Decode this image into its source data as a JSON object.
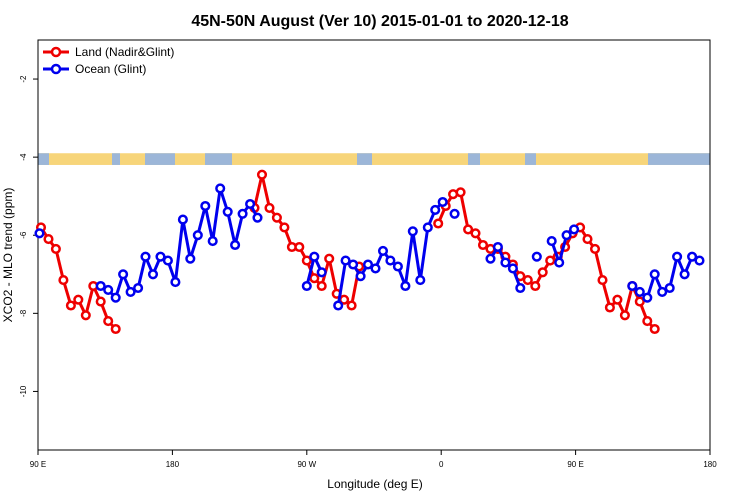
{
  "chart_data": {
    "type": "line",
    "title": "45N-50N August (Ver 10)   2015-01-01 to 2020-12-18",
    "xlabel": "Longitude (deg E)",
    "ylabel": "XCO2 - MLO trend (ppm)",
    "xlim": [
      90,
      540
    ],
    "ylim": [
      -11.5,
      -1
    ],
    "x_ticks": [
      {
        "value": 90,
        "label": "90 E"
      },
      {
        "value": 180,
        "label": "180"
      },
      {
        "value": 270,
        "label": "90 W"
      },
      {
        "value": 360,
        "label": "0"
      },
      {
        "value": 450,
        "label": "90 E"
      },
      {
        "value": 540,
        "label": "180"
      }
    ],
    "y_ticks": [
      {
        "value": -2,
        "label": "-2"
      },
      {
        "value": -4,
        "label": "-4"
      },
      {
        "value": -6,
        "label": "-6"
      },
      {
        "value": -8,
        "label": "-8"
      },
      {
        "value": -10,
        "label": "-10"
      }
    ],
    "legend_position": "top-left",
    "land_band": {
      "y_from": -4.2,
      "y_to": -3.9
    },
    "colors": {
      "land_band": "#f7d57a",
      "ocean_band": "#9cb6d8"
    },
    "series": [
      {
        "name": "Land (Nadir&Glint)",
        "color": "#ee0000",
        "segments": [
          [
            [
              92,
              -5.8
            ],
            [
              97,
              -6.1
            ],
            [
              102,
              -6.35
            ],
            [
              107,
              -7.15
            ],
            [
              112,
              -7.8
            ],
            [
              117,
              -7.65
            ],
            [
              122,
              -8.05
            ],
            [
              127,
              -7.3
            ],
            [
              132,
              -7.7
            ],
            [
              137,
              -8.2
            ],
            [
              142,
              -8.4
            ]
          ],
          [
            [
              235,
              -5.3
            ],
            [
              240,
              -4.45
            ],
            [
              245,
              -5.3
            ],
            [
              250,
              -5.55
            ],
            [
              255,
              -5.8
            ],
            [
              260,
              -6.3
            ],
            [
              265,
              -6.3
            ],
            [
              270,
              -6.65
            ],
            [
              275,
              -7.1
            ],
            [
              280,
              -7.3
            ],
            [
              285,
              -6.6
            ],
            [
              290,
              -7.5
            ],
            [
              295,
              -7.65
            ],
            [
              300,
              -7.8
            ],
            [
              305,
              -6.8
            ]
          ],
          [
            [
              358,
              -5.7
            ],
            [
              363,
              -5.25
            ],
            [
              368,
              -4.95
            ],
            [
              373,
              -4.9
            ],
            [
              378,
              -5.85
            ],
            [
              383,
              -5.95
            ],
            [
              388,
              -6.25
            ],
            [
              393,
              -6.35
            ],
            [
              398,
              -6.35
            ],
            [
              403,
              -6.55
            ],
            [
              408,
              -6.75
            ],
            [
              413,
              -7.05
            ],
            [
              418,
              -7.15
            ],
            [
              423,
              -7.3
            ],
            [
              428,
              -6.95
            ],
            [
              433,
              -6.65
            ],
            [
              438,
              -6.55
            ],
            [
              443,
              -6.3
            ],
            [
              448,
              -5.95
            ],
            [
              453,
              -5.8
            ],
            [
              458,
              -6.1
            ],
            [
              463,
              -6.35
            ],
            [
              468,
              -7.15
            ],
            [
              473,
              -7.85
            ],
            [
              478,
              -7.65
            ],
            [
              483,
              -8.05
            ],
            [
              488,
              -7.3
            ],
            [
              493,
              -7.7
            ],
            [
              498,
              -8.2
            ],
            [
              503,
              -8.4
            ]
          ]
        ]
      },
      {
        "name": "Ocean (Glint)",
        "color": "#0000ee",
        "segments": [
          [
            [
              91,
              -5.95
            ]
          ],
          [
            [
              132,
              -7.3
            ],
            [
              137,
              -7.4
            ],
            [
              142,
              -7.6
            ],
            [
              147,
              -7.0
            ],
            [
              152,
              -7.45
            ],
            [
              157,
              -7.35
            ],
            [
              162,
              -6.55
            ],
            [
              167,
              -7.0
            ],
            [
              172,
              -6.55
            ],
            [
              177,
              -6.65
            ],
            [
              182,
              -7.2
            ],
            [
              187,
              -5.6
            ],
            [
              192,
              -6.6
            ],
            [
              197,
              -6.0
            ],
            [
              202,
              -5.25
            ],
            [
              207,
              -6.15
            ],
            [
              212,
              -4.8
            ],
            [
              217,
              -5.4
            ],
            [
              222,
              -6.25
            ],
            [
              227,
              -5.45
            ],
            [
              232,
              -5.2
            ],
            [
              237,
              -5.55
            ]
          ],
          [
            [
              270,
              -7.3
            ],
            [
              275,
              -6.55
            ],
            [
              280,
              -6.95
            ]
          ],
          [
            [
              291,
              -7.8
            ],
            [
              296,
              -6.65
            ],
            [
              301,
              -6.75
            ],
            [
              306,
              -7.05
            ],
            [
              311,
              -6.75
            ],
            [
              316,
              -6.85
            ],
            [
              321,
              -6.4
            ],
            [
              326,
              -6.65
            ],
            [
              331,
              -6.8
            ],
            [
              336,
              -7.3
            ],
            [
              341,
              -5.9
            ],
            [
              346,
              -7.15
            ],
            [
              351,
              -5.8
            ],
            [
              356,
              -5.35
            ],
            [
              361,
              -5.15
            ]
          ],
          [
            [
              369,
              -5.45
            ]
          ],
          [
            [
              393,
              -6.6
            ],
            [
              398,
              -6.3
            ],
            [
              403,
              -6.7
            ],
            [
              408,
              -6.85
            ],
            [
              413,
              -7.35
            ]
          ],
          [
            [
              424,
              -6.55
            ]
          ],
          [
            [
              434,
              -6.15
            ],
            [
              439,
              -6.7
            ],
            [
              444,
              -6.0
            ],
            [
              449,
              -5.85
            ]
          ],
          [
            [
              488,
              -7.3
            ],
            [
              493,
              -7.45
            ],
            [
              498,
              -7.6
            ],
            [
              503,
              -7.0
            ],
            [
              508,
              -7.45
            ],
            [
              513,
              -7.35
            ],
            [
              518,
              -6.55
            ],
            [
              523,
              -7.0
            ],
            [
              528,
              -6.55
            ],
            [
              533,
              -6.65
            ]
          ]
        ]
      }
    ]
  }
}
